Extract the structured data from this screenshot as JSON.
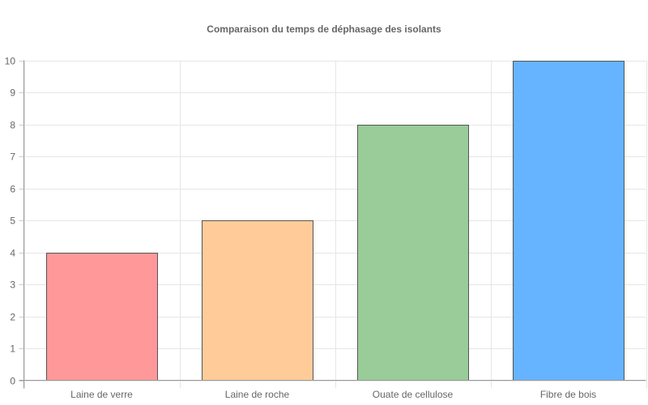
{
  "chart_data": {
    "type": "bar",
    "title": "Comparaison du temps de déphasage des isolants",
    "xlabel": "",
    "ylabel": "",
    "categories": [
      "Laine de verre",
      "Laine de roche",
      "Ouate de cellulose",
      "Fibre de bois"
    ],
    "values": [
      4,
      5,
      8,
      10
    ],
    "colors": [
      "#ff9999",
      "#ffcc99",
      "#99cc99",
      "#66b3ff"
    ],
    "border_color": "#555555",
    "ylim": [
      0,
      10
    ],
    "yticks": [
      0,
      1,
      2,
      3,
      4,
      5,
      6,
      7,
      8,
      9,
      10
    ],
    "grid": true,
    "legend": null
  }
}
